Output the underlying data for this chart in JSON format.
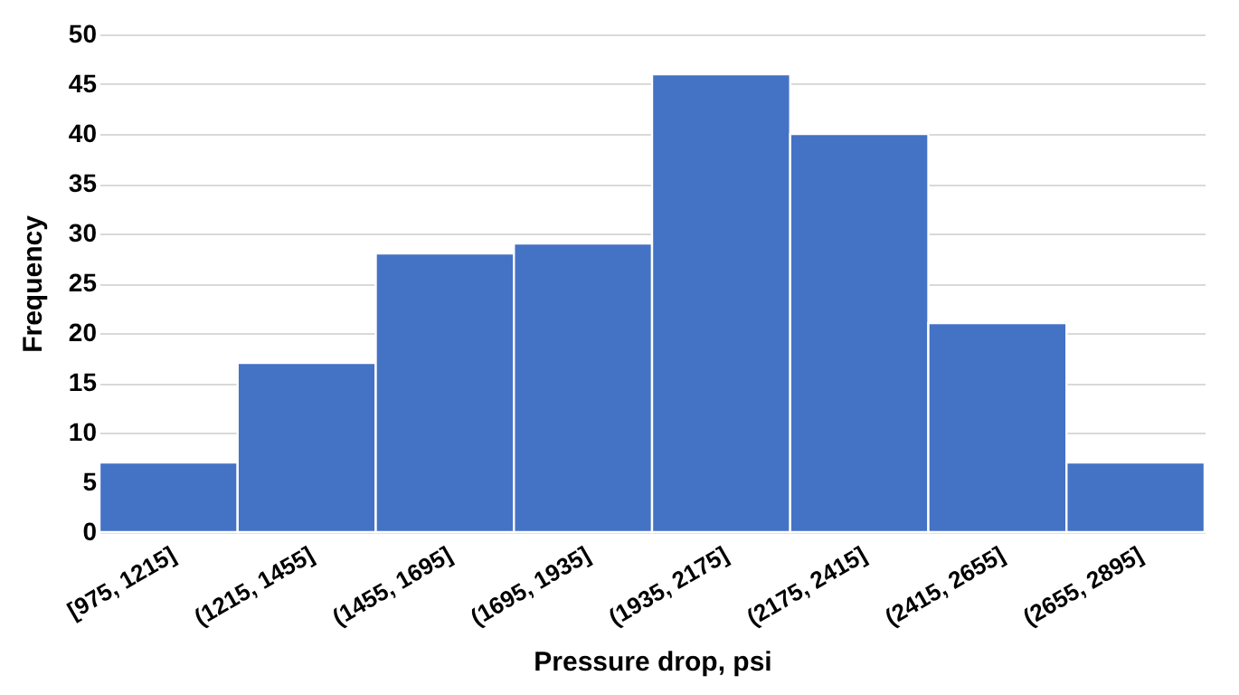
{
  "chart_data": {
    "type": "bar",
    "xlabel": "Pressure drop, psi",
    "ylabel": "Frequency",
    "categories": [
      "[975, 1215]",
      "(1215, 1455]",
      "(1455, 1695]",
      "(1695, 1935]",
      "(1935, 2175]",
      "(2175, 2415]",
      "(2415, 2655]",
      "(2655, 2895]"
    ],
    "values": [
      7,
      17,
      28,
      29,
      46,
      40,
      21,
      7
    ],
    "color": "#4472c4",
    "ylim": [
      0,
      50
    ],
    "yticks": [
      0,
      5,
      10,
      15,
      20,
      25,
      30,
      35,
      40,
      45,
      50
    ],
    "grid": "y"
  }
}
